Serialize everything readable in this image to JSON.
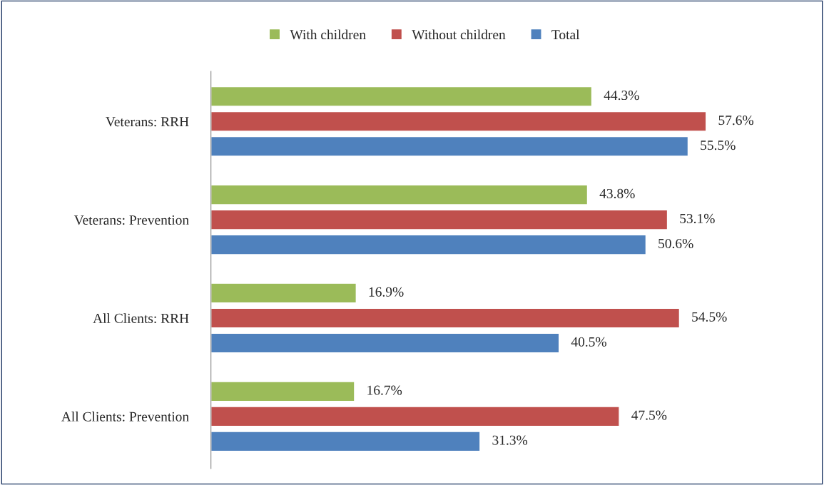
{
  "chart_data": {
    "type": "bar",
    "orientation": "horizontal",
    "categories": [
      "Veterans: RRH",
      "Veterans: Prevention",
      "All Clients: RRH",
      "All Clients: Prevention"
    ],
    "series": [
      {
        "name": "With children",
        "color": "#9bbb59",
        "values": [
          44.3,
          43.8,
          16.9,
          16.7
        ],
        "value_labels": [
          "44.3%",
          "43.8%",
          "16.9%",
          "16.7%"
        ]
      },
      {
        "name": "Without children",
        "color": "#c0504d",
        "values": [
          57.6,
          53.1,
          54.5,
          47.5
        ],
        "value_labels": [
          "57.6%",
          "53.1%",
          "54.5%",
          "47.5%"
        ]
      },
      {
        "name": "Total",
        "color": "#4f81bd",
        "values": [
          55.5,
          50.6,
          40.5,
          31.3
        ],
        "value_labels": [
          "55.5%",
          "50.6%",
          "40.5%",
          "31.3%"
        ]
      }
    ],
    "tick_labels": "y",
    "legend": "top",
    "grid": false
  }
}
